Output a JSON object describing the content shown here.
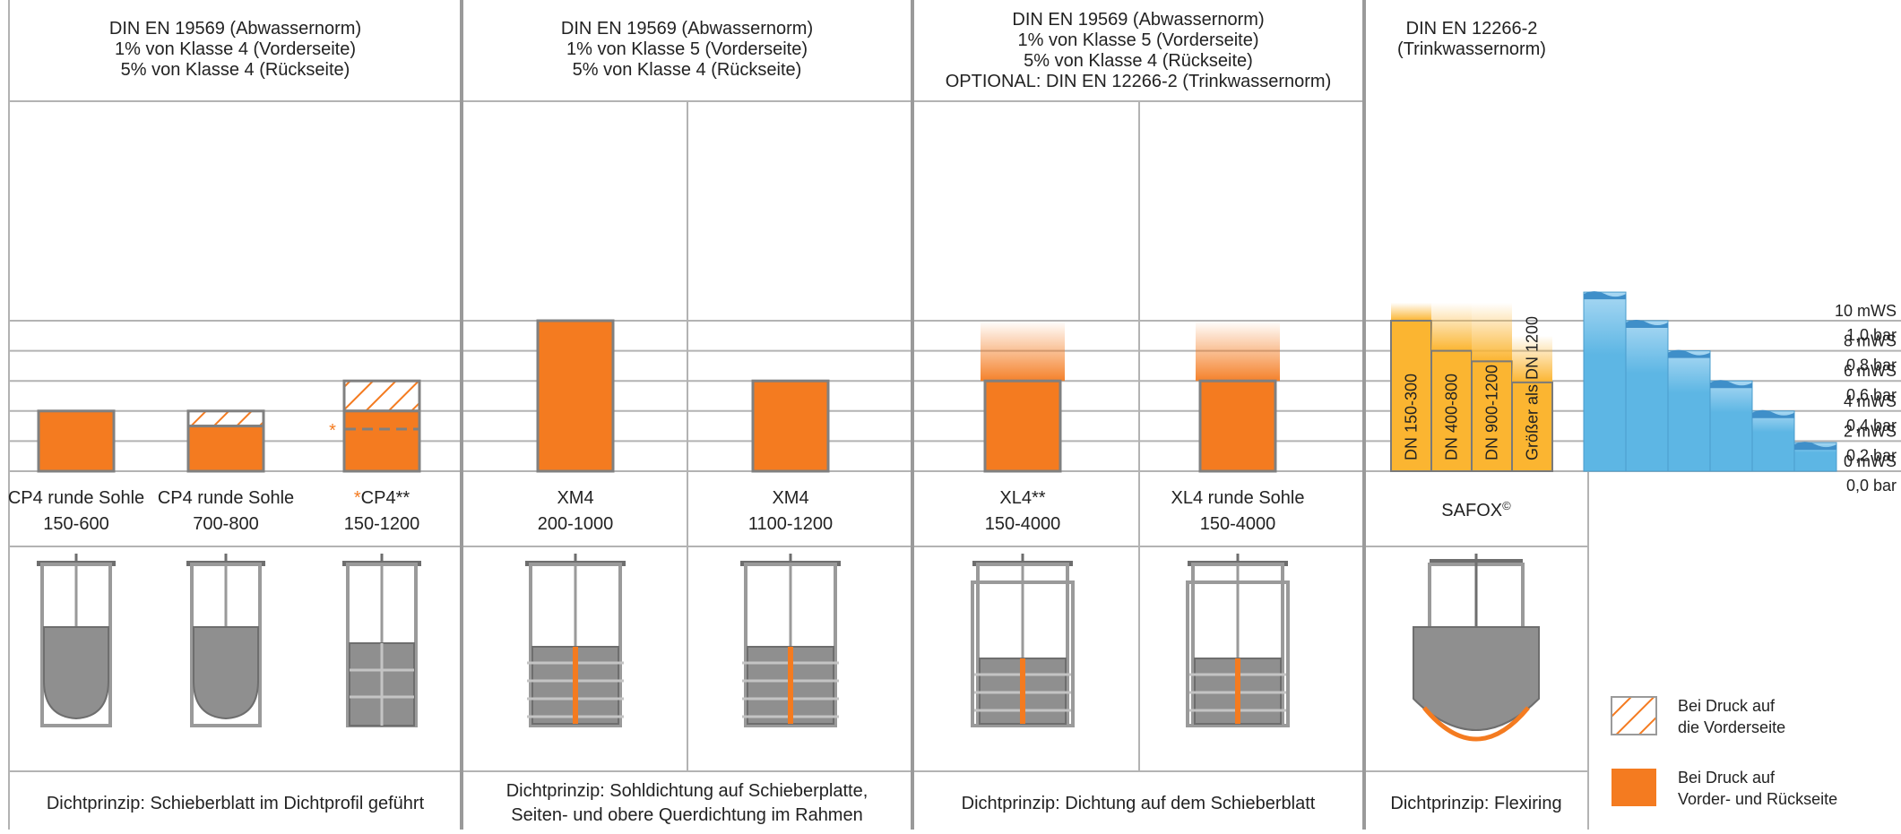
{
  "colors": {
    "orange": "#f47b20",
    "orange_border": "#808080",
    "yellow": "#fbb531",
    "water": "#5db6e4",
    "water_light": "#a9d8f3",
    "grid": "#b3b3b3",
    "divider": "#9a9a9a"
  },
  "sections": [
    {
      "header": [
        "DIN EN 19569 (Abwassernorm)",
        "1% von Klasse 4 (Vorderseite)",
        "5% von Klasse 4 (Rückseite)"
      ],
      "footer": [
        "Dichtprinzip: Schieberblatt im Dichtprofil geführt"
      ]
    },
    {
      "header": [
        "DIN EN 19569 (Abwassernorm)",
        "1% von Klasse 5 (Vorderseite)",
        "5% von Klasse 4 (Rückseite)"
      ],
      "footer": [
        "Dichtprinzip: Sohldichtung auf Schieberplatte,",
        "Seiten- und obere Querdichtung im Rahmen"
      ]
    },
    {
      "header": [
        "DIN EN 19569 (Abwassernorm)",
        "1% von Klasse 5 (Vorderseite)",
        "5% von Klasse 4 (Rückseite)",
        "OPTIONAL: DIN EN 12266-2 (Trinkwassernorm)"
      ],
      "footer": [
        "Dichtprinzip: Dichtung auf dem Schieberblatt"
      ]
    },
    {
      "header": [
        "DIN EN 12266-2",
        "(Trinkwassernorm)"
      ],
      "footer": [
        "Dichtprinzip: Flexiring"
      ]
    }
  ],
  "products": [
    {
      "name": "CP4 runde Sohle",
      "range": "150-600"
    },
    {
      "name": "CP4 runde Sohle",
      "range": "700-800"
    },
    {
      "name": "CP4**",
      "prefix": "*",
      "range": "150-1200"
    },
    {
      "name": "XM4",
      "range": "200-1000"
    },
    {
      "name": "XM4",
      "range": "1100-1200"
    },
    {
      "name": "XL4**",
      "range": "150-4000"
    },
    {
      "name": "XL4 runde Sohle",
      "range": "150-4000"
    },
    {
      "name": "SAFOX",
      "suffix": "©",
      "range": ""
    }
  ],
  "chart_data": {
    "type": "bar",
    "ylabel": "mWS / bar",
    "ylim": [
      0,
      10
    ],
    "y_ticks": [
      {
        "mws": "0 mWS",
        "bar": "0,0 bar",
        "value": 0
      },
      {
        "mws": "2 mWS",
        "bar": "0,2 bar",
        "value": 2
      },
      {
        "mws": "4 mWS",
        "bar": "0,4 bar",
        "value": 4
      },
      {
        "mws": "6 mWS",
        "bar": "0,6 bar",
        "value": 6
      },
      {
        "mws": "8 mWS",
        "bar": "0,8 bar",
        "value": 8
      },
      {
        "mws": "10 mWS",
        "bar": "1,0 bar",
        "value": 10
      }
    ],
    "series": [
      {
        "name": "Bei Druck auf Vorder- und Rückseite",
        "values": {
          "CP4 runde Sohle 150-600": 4,
          "CP4 runde Sohle 700-800": 3,
          "CP4** 150-1200": 4,
          "XM4 200-1000": 10,
          "XM4 1100-1200": 6,
          "XL4** 150-4000": 6,
          "XL4 runde Sohle 150-4000": 6
        }
      },
      {
        "name": "Bei Druck auf die Vorderseite",
        "values": {
          "CP4 runde Sohle 700-800": 4,
          "CP4** 150-1200": 6
        }
      }
    ],
    "cp4_marker_value": 2.8,
    "optional_gradient_top": 10,
    "safox": [
      {
        "label": "DN 150-300",
        "value": 10,
        "gradient_top": 11.2
      },
      {
        "label": "DN 400-800",
        "value": 8,
        "gradient_top": 11.2
      },
      {
        "label": "DN 900-1200",
        "value": 7.3,
        "gradient_top": 11.2
      },
      {
        "label": "Größer als DN 1200",
        "value": 5.9,
        "gradient_top": 9
      }
    ],
    "water_steps": [
      11.9,
      10,
      8,
      6,
      4,
      1.9
    ]
  },
  "legend": [
    {
      "type": "hatched",
      "lines": [
        "Bei Druck auf",
        "die Vorderseite"
      ]
    },
    {
      "type": "solid",
      "lines": [
        "Bei Druck auf",
        "Vorder- und Rückseite"
      ]
    }
  ]
}
